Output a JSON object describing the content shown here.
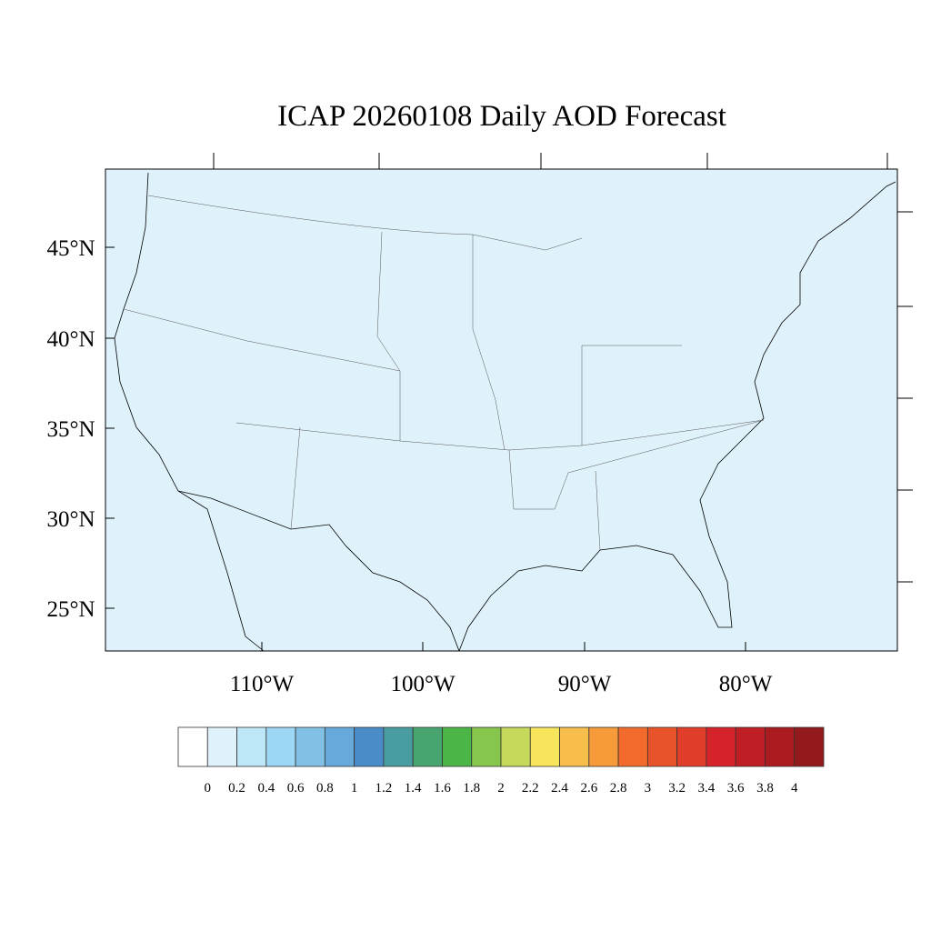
{
  "title": "ICAP 20260108 Daily AOD Forecast",
  "map": {
    "background_color": "#dff2fb",
    "lat_labels": [
      "45°N",
      "40°N",
      "35°N",
      "30°N",
      "25°N"
    ],
    "lon_labels": [
      "110°W",
      "100°W",
      "90°W",
      "80°W"
    ],
    "region": "Contiguous United States"
  },
  "colorbar": {
    "colors": [
      "#ffffff",
      "#dff2fb",
      "#bde6f7",
      "#9dd7f5",
      "#82c0e6",
      "#67a9db",
      "#4a8cc8",
      "#499c9f",
      "#48a570",
      "#4bb548",
      "#86c64d",
      "#c7d95a",
      "#f7e65c",
      "#f7be4c",
      "#f69a3a",
      "#f26b2c",
      "#e9532a",
      "#e03d2a",
      "#d6222b",
      "#bf1e25",
      "#aa1b20",
      "#921a1c"
    ],
    "labels": [
      "0",
      "0.2",
      "0.4",
      "0.6",
      "0.8",
      "1",
      "1.2",
      "1.4",
      "1.6",
      "1.8",
      "2",
      "2.2",
      "2.4",
      "2.6",
      "2.8",
      "3",
      "3.2",
      "3.4",
      "3.6",
      "3.8",
      "4"
    ]
  }
}
